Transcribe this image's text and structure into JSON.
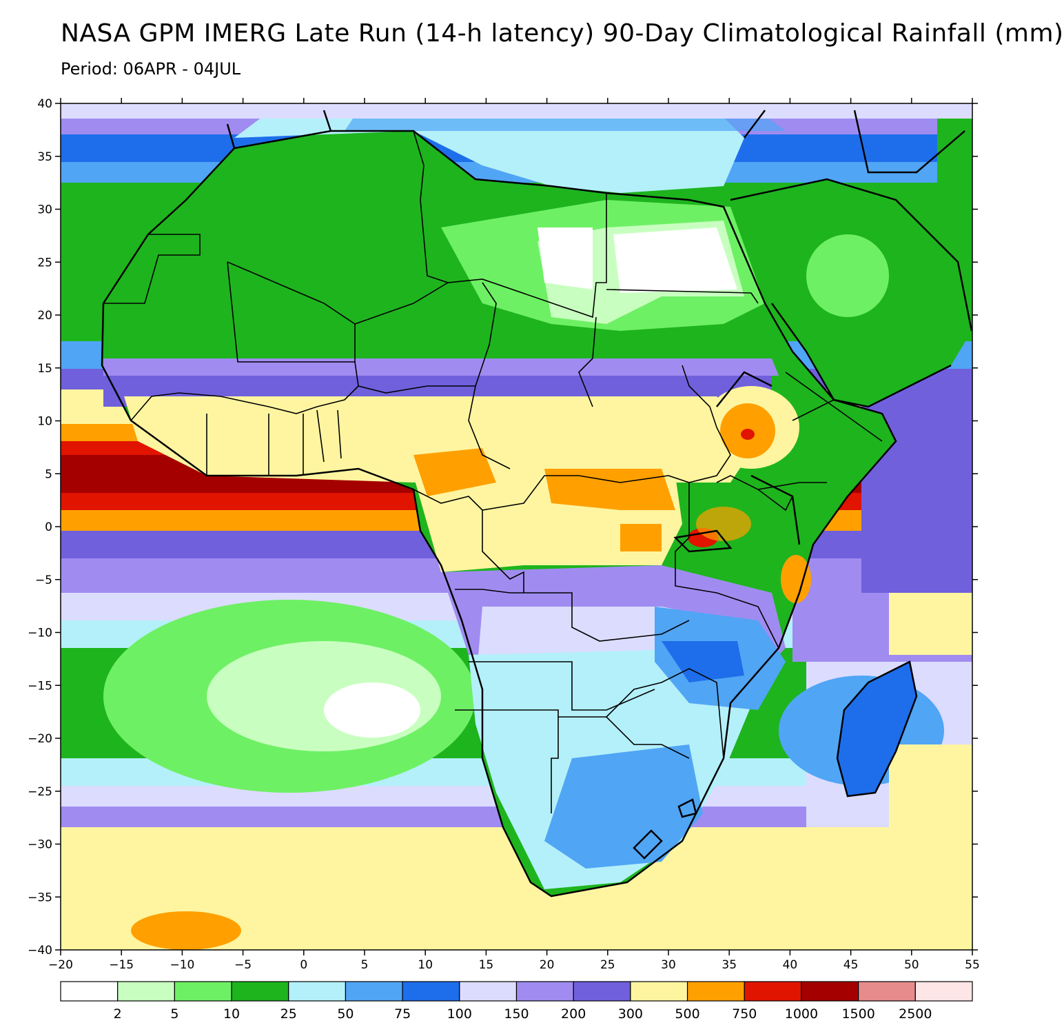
{
  "title": "NASA GPM IMERG Late Run (14-h latency) 90-Day Climatological Rainfall (mm)",
  "subtitle": "Period: 06APR - 04JUL",
  "map": {
    "lon_range": [
      -20,
      55
    ],
    "lat_range": [
      -40,
      40
    ],
    "lon_ticks": [
      -20,
      -15,
      -10,
      -5,
      0,
      5,
      10,
      15,
      20,
      25,
      30,
      35,
      40,
      45,
      50,
      55
    ],
    "lat_ticks": [
      40,
      35,
      30,
      25,
      20,
      15,
      10,
      5,
      0,
      -5,
      -10,
      -15,
      -20,
      -25,
      -30,
      -35,
      -40
    ],
    "lon_tick_labels": [
      "−20",
      "−15",
      "−10",
      "−5",
      "0",
      "5",
      "10",
      "15",
      "20",
      "25",
      "30",
      "35",
      "40",
      "45",
      "50",
      "55"
    ],
    "lat_tick_labels": [
      "40",
      "35",
      "30",
      "25",
      "20",
      "15",
      "10",
      "5",
      "0",
      "−5",
      "−10",
      "−15",
      "−20",
      "−25",
      "−30",
      "−35",
      "−40"
    ]
  },
  "colorbar": {
    "colors": [
      "#ffffff",
      "#c8ffc0",
      "#6ef064",
      "#1eb41e",
      "#b4f0fa",
      "#50a5f5",
      "#1e6eeb",
      "#dcdcff",
      "#a08cf0",
      "#7060dc",
      "#fff5a0",
      "#ffa000",
      "#e11400",
      "#a50000",
      "#e68c8c",
      "#ffe6e6"
    ],
    "boundaries": [
      "2",
      "5",
      "10",
      "25",
      "50",
      "75",
      "100",
      "150",
      "200",
      "300",
      "500",
      "750",
      "1000",
      "1500",
      "2500"
    ]
  }
}
